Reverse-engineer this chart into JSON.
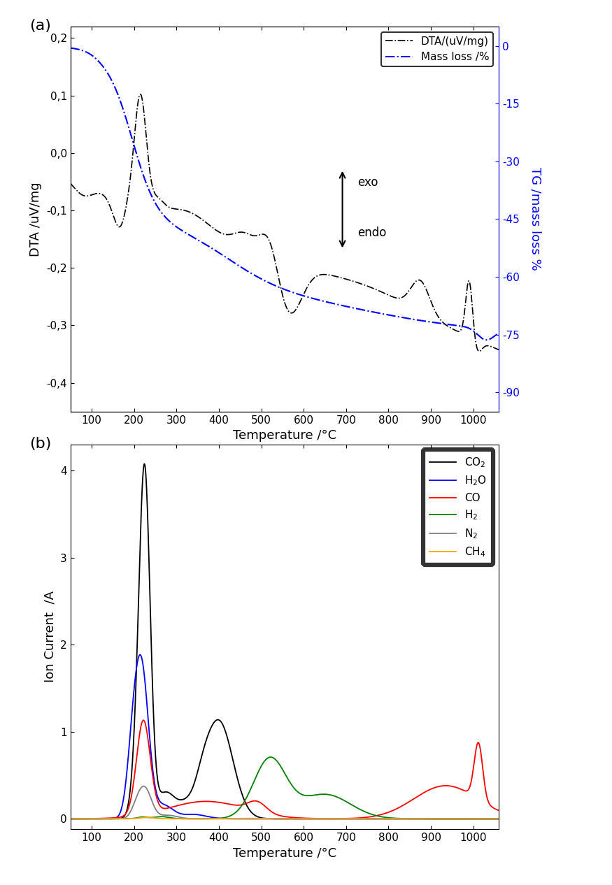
{
  "fig_width": 8.75,
  "fig_height": 12.66,
  "panel_a": {
    "label": "(a)",
    "xlabel": "Temperature /°C",
    "ylabel_left": "DTA /uV/mg",
    "ylabel_right": "TG /mass loss %",
    "xlim": [
      50,
      1060
    ],
    "ylim_left": [
      -0.45,
      0.22
    ],
    "ylim_right": [
      -95,
      5
    ],
    "yticks_left": [
      -0.4,
      -0.3,
      -0.2,
      -0.1,
      0.0,
      0.1,
      0.2
    ],
    "ytick_labels_left": [
      "-0,4",
      "-0,3",
      "-0,2",
      "-0,1",
      "0,0",
      "0,1",
      "0,2"
    ],
    "yticks_right": [
      0,
      -15,
      -30,
      -45,
      -60,
      -75,
      -90
    ],
    "xticks": [
      100,
      200,
      300,
      400,
      500,
      600,
      700,
      800,
      900,
      1000
    ]
  },
  "panel_b": {
    "label": "(b)",
    "xlabel": "Temperature /°C",
    "ylabel": "Ion Current  /A",
    "xlim": [
      50,
      1060
    ],
    "ylim": [
      -0.12,
      4.3
    ],
    "yticks": [
      0,
      1,
      2,
      3,
      4
    ],
    "xticks": [
      100,
      200,
      300,
      400,
      500,
      600,
      700,
      800,
      900,
      1000
    ]
  },
  "background_color": "white",
  "tick_fontsize": 11,
  "label_fontsize": 13,
  "legend_fontsize": 11
}
